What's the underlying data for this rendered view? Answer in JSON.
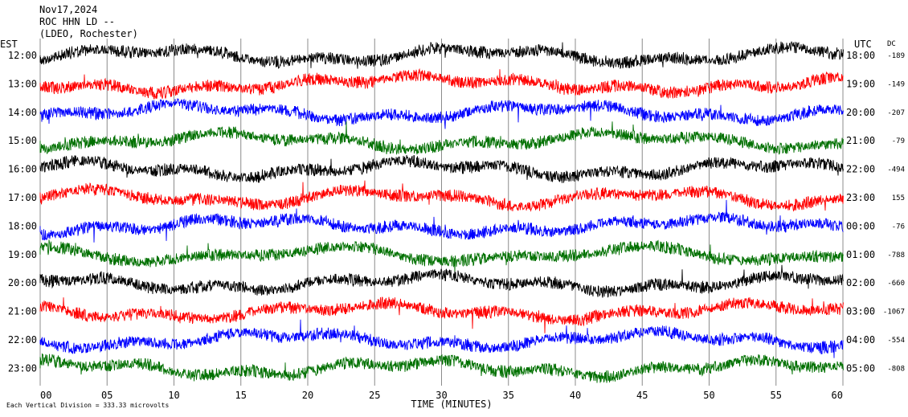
{
  "header": {
    "date": "Nov17,2024",
    "station": "ROC HHN LD --",
    "network": "(LDEO, Rochester)"
  },
  "chart_data": {
    "type": "line",
    "left_axis_title": "EST",
    "right_axis_title": "UTC",
    "dc_title": "DC",
    "xlabel": "TIME (MINUTES)",
    "x_ticks": [
      "00",
      "05",
      "10",
      "15",
      "20",
      "25",
      "30",
      "35",
      "40",
      "45",
      "50",
      "55",
      "60"
    ],
    "xlim": [
      0,
      60
    ],
    "grid_vertical": true,
    "footer_note": "Each Vertical Division = 333.33 microvolts",
    "trace_colors": [
      "#000000",
      "#ff0000",
      "#0000ff",
      "#007000"
    ],
    "rows": [
      {
        "est": "12:00",
        "utc": "18:00",
        "dc": "-189"
      },
      {
        "est": "13:00",
        "utc": "19:00",
        "dc": "-149"
      },
      {
        "est": "14:00",
        "utc": "20:00",
        "dc": "-207"
      },
      {
        "est": "15:00",
        "utc": "21:00",
        "dc": "-79"
      },
      {
        "est": "16:00",
        "utc": "22:00",
        "dc": "-494"
      },
      {
        "est": "17:00",
        "utc": "23:00",
        "dc": "155"
      },
      {
        "est": "18:00",
        "utc": "00:00",
        "dc": "-76"
      },
      {
        "est": "19:00",
        "utc": "01:00",
        "dc": "-788"
      },
      {
        "est": "20:00",
        "utc": "02:00",
        "dc": "-660"
      },
      {
        "est": "21:00",
        "utc": "03:00",
        "dc": "-1067"
      },
      {
        "est": "22:00",
        "utc": "04:00",
        "dc": "-554"
      },
      {
        "est": "23:00",
        "utc": "05:00",
        "dc": "-808"
      }
    ]
  }
}
